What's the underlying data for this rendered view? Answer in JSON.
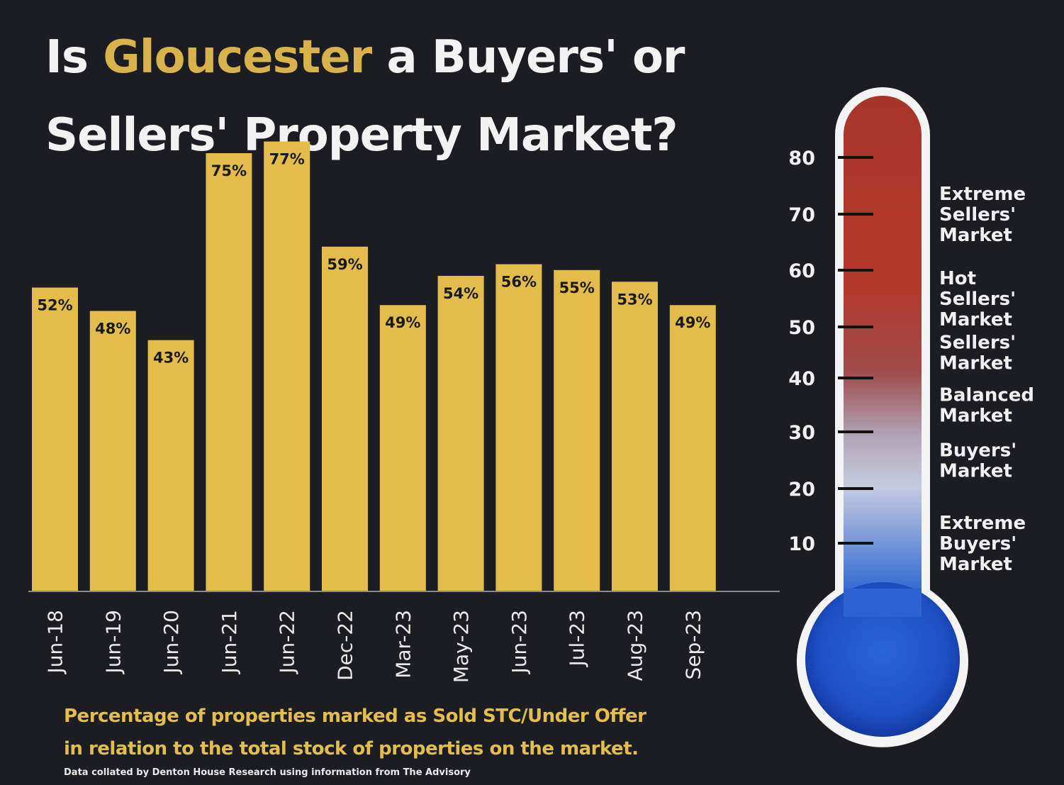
{
  "title": {
    "line1_prefix": "Is ",
    "line1_highlight": "Gloucester",
    "line1_suffix": " a Buyers' or",
    "line2": "Sellers' Property Market?"
  },
  "caption": {
    "line1": "Percentage of properties marked as Sold STC/Under Offer",
    "line2": "in relation to the total stock of properties on the market.",
    "source": "Data collated by Denton House Research using information from The Advisory"
  },
  "colors": {
    "background": "#1c1d22",
    "bar": "#e3bc4c",
    "title_highlight": "#d8b24a",
    "caption": "#e3bd4e",
    "thermo_hot": "#b3392a",
    "thermo_cold": "#1a4fc4"
  },
  "chart_data": [
    {
      "type": "bar",
      "categories": [
        "Jun-18",
        "Jun-19",
        "Jun-20",
        "Jun-21",
        "Jun-22",
        "Dec-22",
        "Mar-23",
        "May-23",
        "Jun-23",
        "Jul-23",
        "Aug-23",
        "Sep-23"
      ],
      "values": [
        52,
        48,
        43,
        75,
        77,
        59,
        49,
        54,
        56,
        55,
        53,
        49
      ],
      "value_labels": [
        "52%",
        "48%",
        "43%",
        "75%",
        "77%",
        "59%",
        "49%",
        "54%",
        "56%",
        "55%",
        "53%",
        "49%"
      ],
      "unit": "%",
      "ylim": [
        0,
        100
      ],
      "grid": false,
      "legend": "none"
    },
    {
      "type": "thermometer",
      "ticks": [
        80,
        70,
        60,
        50,
        40,
        30,
        20,
        10
      ],
      "zones": [
        {
          "label": [
            "Extreme",
            "Sellers'",
            "Market"
          ],
          "value": 70
        },
        {
          "label": [
            "Hot",
            "Sellers'",
            "Market"
          ],
          "value": 55
        },
        {
          "label": [
            "Sellers'",
            "Market"
          ],
          "value": 45
        },
        {
          "label": [
            "Balanced",
            "Market"
          ],
          "value": 35
        },
        {
          "label": [
            "Buyers'",
            "Market"
          ],
          "value": 25
        },
        {
          "label": [
            "Extreme",
            "Buyers'",
            "Market"
          ],
          "value": 10
        }
      ]
    }
  ]
}
